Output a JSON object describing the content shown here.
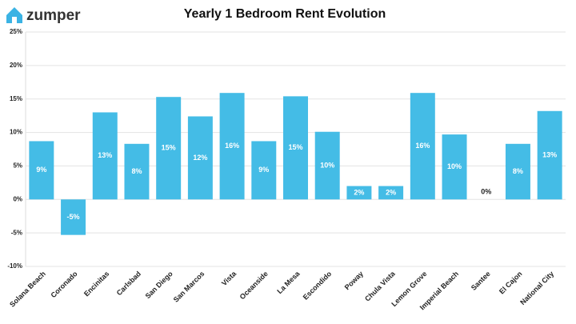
{
  "brand": "zumper",
  "chart_data": {
    "type": "bar",
    "title": "Yearly 1 Bedroom Rent Evolution",
    "categories": [
      "Solana Beach",
      "Coronado",
      "Encinitas",
      "Carlsbad",
      "San Diego",
      "San Marcos",
      "Vista",
      "Oceanside",
      "La Mesa",
      "Escondido",
      "Poway",
      "Chula Vista",
      "Lemon Grove",
      "Imperial Beach",
      "Santee",
      "El Cajon",
      "National City"
    ],
    "values": [
      8.7,
      -5.3,
      13.0,
      8.3,
      15.3,
      12.4,
      15.9,
      8.7,
      15.4,
      10.1,
      2.0,
      2.0,
      15.9,
      9.7,
      0,
      8.3,
      13.2
    ],
    "value_labels": [
      "9%",
      "-5%",
      "13%",
      "8%",
      "15%",
      "12%",
      "16%",
      "9%",
      "15%",
      "10%",
      "2%",
      "2%",
      "16%",
      "10%",
      "0%",
      "8%",
      "13%"
    ],
    "color": "#44bce6",
    "ylim": [
      -10,
      25
    ],
    "yticks": [
      {
        "value": -10,
        "label": "-10%"
      },
      {
        "value": -5,
        "label": "-5%"
      },
      {
        "value": 0,
        "label": "0%"
      },
      {
        "value": 5,
        "label": "5%"
      },
      {
        "value": 10,
        "label": "10%"
      },
      {
        "value": 15,
        "label": "15%"
      },
      {
        "value": 20,
        "label": "20%"
      },
      {
        "value": 25,
        "label": "25%"
      }
    ],
    "grid": true
  }
}
